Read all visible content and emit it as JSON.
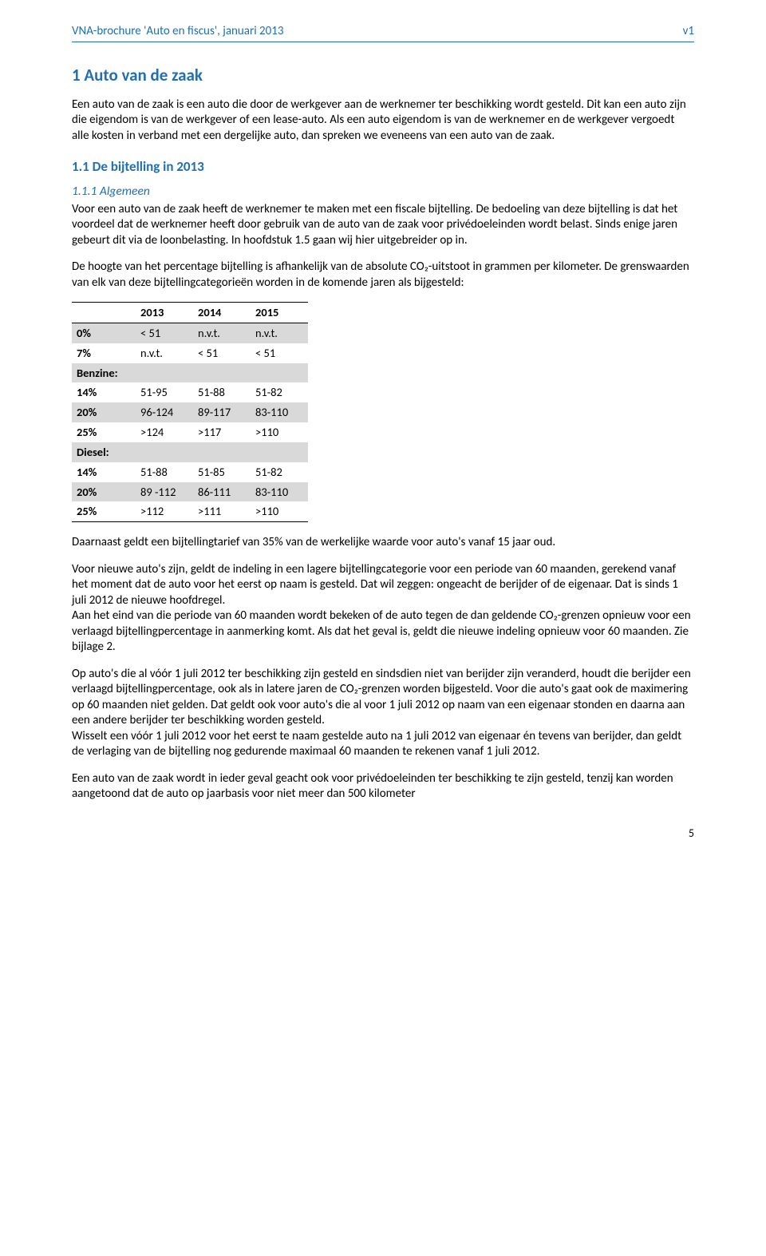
{
  "header": {
    "left": "VNA-brochure 'Auto en fiscus', januari 2013",
    "right": "v1"
  },
  "h1": "1 Auto van de zaak",
  "para1": "Een auto van de zaak is een auto die door de werkgever aan de werknemer ter beschikking wordt gesteld. Dit kan een auto zijn die eigendom is van de werkgever of een lease-auto. Als een auto eigendom is van de werknemer en de werkgever vergoedt alle kosten in verband met een dergelijke auto, dan spreken we eveneens van een auto van de zaak.",
  "h2": "1.1 De bijtelling in 2013",
  "h3": "1.1.1 Algemeen",
  "para2": "Voor een auto van de zaak heeft de werknemer te maken met een fiscale bijtelling. De bedoeling van deze bijtelling is dat het voordeel dat de werknemer heeft door gebruik van de auto van de zaak voor privédoeleinden wordt belast. Sinds enige jaren gebeurt dit via de loonbelasting. In hoofdstuk 1.5 gaan wij hier uitgebreider op in.",
  "para3": "De hoogte van het percentage bijtelling is afhankelijk van de absolute CO₂-uitstoot in grammen per kilometer. De grenswaarden van elk van deze bijtellingcategorieën worden in de komende jaren als bijgesteld:",
  "table": {
    "columns": [
      "",
      "2013",
      "2014",
      "2015"
    ],
    "rows": [
      {
        "label": "0%",
        "cells": [
          "< 51",
          "n.v.t.",
          "n.v.t."
        ],
        "grey": true
      },
      {
        "label": "7%",
        "cells": [
          "n.v.t.",
          "< 51",
          "< 51"
        ],
        "grey": false
      },
      {
        "label": "Benzine:",
        "cells": [
          "",
          "",
          ""
        ],
        "grey": true,
        "section": true
      },
      {
        "label": "14%",
        "cells": [
          "51-95",
          "51-88",
          "51-82"
        ],
        "grey": false
      },
      {
        "label": "20%",
        "cells": [
          "96-124",
          "89-117",
          "83-110"
        ],
        "grey": true
      },
      {
        "label": "25%",
        "cells": [
          ">124",
          ">117",
          ">110"
        ],
        "grey": false
      },
      {
        "label": "Diesel:",
        "cells": [
          "",
          "",
          ""
        ],
        "grey": true,
        "section": true
      },
      {
        "label": "14%",
        "cells": [
          "51-88",
          "51-85",
          "51-82"
        ],
        "grey": false
      },
      {
        "label": "20%",
        "cells": [
          "89 -112",
          "86-111",
          "83-110"
        ],
        "grey": true
      },
      {
        "label": "25%",
        "cells": [
          ">112",
          ">111",
          ">110"
        ],
        "grey": false
      }
    ]
  },
  "para4": "Daarnaast geldt een bijtellingtarief van 35% van de werkelijke waarde voor auto's vanaf 15 jaar oud.",
  "para5a": "Voor nieuwe auto's zijn, geldt de indeling in een lagere bijtellingcategorie voor een periode van 60 maanden, gerekend vanaf het moment dat de auto voor het eerst op naam is gesteld. Dat wil zeggen: ongeacht de berijder of de eigenaar. Dat is sinds 1 juli 2012 de nieuwe hoofdregel.",
  "para5b": "Aan het eind van die periode van 60 maanden wordt bekeken of de auto tegen de dan geldende CO₂-grenzen opnieuw voor een verlaagd bijtellingpercentage in aanmerking komt. Als dat het geval is, geldt die nieuwe indeling opnieuw voor 60 maanden. Zie bijlage 2.",
  "para6a": "Op auto's die al vóór 1 juli 2012 ter beschikking zijn gesteld en sindsdien niet van berijder zijn veranderd, houdt die berijder een verlaagd bijtellingpercentage, ook als in latere jaren de CO₂-grenzen worden bijgesteld. Voor die auto's gaat ook de maximering op 60 maanden niet gelden. Dat geldt ook voor auto's die al voor 1 juli 2012 op naam van een eigenaar stonden en daarna aan een andere berijder ter beschikking worden gesteld.",
  "para6b": "Wisselt een vóór 1 juli 2012 voor het eerst te naam gestelde auto na 1 juli 2012 van eigenaar én tevens van berijder, dan geldt de verlaging van de bijtelling nog gedurende maximaal 60 maanden te rekenen vanaf 1 juli 2012.",
  "para7": "Een auto van de zaak wordt in ieder geval geacht ook voor privédoeleinden ter beschikking te zijn gesteld, tenzij kan worden aangetoond dat de auto op jaarbasis voor niet meer dan 500 kilometer",
  "page_num": "5"
}
